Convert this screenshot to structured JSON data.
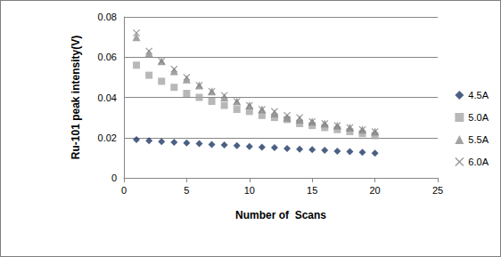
{
  "chart_data": {
    "type": "scatter",
    "x_label": "Number of  Scans",
    "y_label": "Ru-101 peak intensity(V)",
    "x": [
      1,
      2,
      3,
      4,
      5,
      6,
      7,
      8,
      9,
      10,
      11,
      12,
      13,
      14,
      15,
      16,
      17,
      18,
      19,
      20
    ],
    "series": [
      {
        "name": "4.5A",
        "color": "#1f3864",
        "marker": "diamond",
        "values": [
          0.019,
          0.0185,
          0.018,
          0.0177,
          0.0173,
          0.017,
          0.0166,
          0.0163,
          0.016,
          0.0156,
          0.0153,
          0.015,
          0.0146,
          0.0143,
          0.014,
          0.0137,
          0.0133,
          0.013,
          0.0127,
          0.0123
        ]
      },
      {
        "name": "5.0A",
        "color": "#a6a6a6",
        "marker": "square",
        "values": [
          0.056,
          0.051,
          0.048,
          0.045,
          0.042,
          0.04,
          0.038,
          0.036,
          0.034,
          0.033,
          0.031,
          0.03,
          0.029,
          0.027,
          0.026,
          0.025,
          0.024,
          0.023,
          0.022,
          0.021
        ]
      },
      {
        "name": "5.5A",
        "color": "#8c8c8c",
        "marker": "triangle",
        "values": [
          0.07,
          0.062,
          0.058,
          0.053,
          0.049,
          0.046,
          0.043,
          0.04,
          0.038,
          0.036,
          0.034,
          0.032,
          0.03,
          0.029,
          0.028,
          0.027,
          0.026,
          0.025,
          0.024,
          0.023
        ]
      },
      {
        "name": "6.0A",
        "color": "#7f7f7f",
        "marker": "x",
        "values": [
          0.072,
          0.063,
          0.058,
          0.054,
          0.05,
          0.046,
          0.043,
          0.041,
          0.038,
          0.036,
          0.034,
          0.033,
          0.031,
          0.03,
          0.028,
          0.027,
          0.026,
          0.025,
          0.024,
          0.023
        ]
      }
    ],
    "xlim": [
      0,
      25
    ],
    "xticks": [
      0,
      5,
      10,
      15,
      20,
      25
    ],
    "ylim": [
      0,
      0.08
    ],
    "yticks": [
      0,
      0.02,
      0.04,
      0.06,
      0.08
    ],
    "grid": true,
    "legend": "right"
  }
}
